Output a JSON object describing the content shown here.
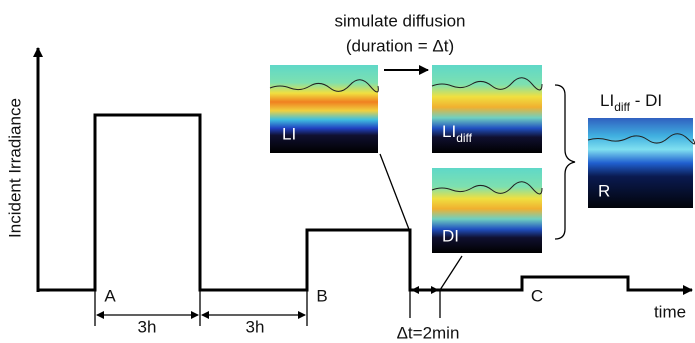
{
  "header": {
    "line1": "simulate diffusion",
    "line2": "(duration = Δt)"
  },
  "axes": {
    "y_label": "Incident Irradiance",
    "x_label": "time"
  },
  "pulses": [
    "A",
    "B",
    "C"
  ],
  "intervals": [
    "3h",
    "3h",
    "Δt=2min"
  ],
  "images": [
    {
      "main": "LI"
    },
    {
      "main": "LI",
      "sub": "diff"
    },
    {
      "main": "DI"
    },
    {
      "main": "R"
    }
  ],
  "difference": {
    "main": "LI",
    "sub": "diff",
    "rest": " - DI"
  }
}
